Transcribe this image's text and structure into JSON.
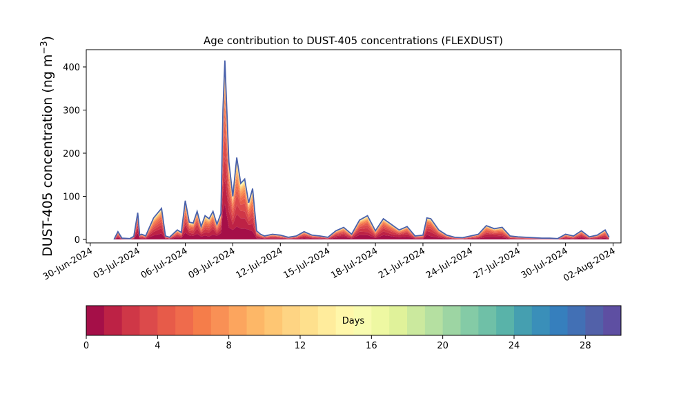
{
  "chart_data": {
    "type": "area",
    "title": "Age contribution to DUST-405 concentrations (FLEXDUST)",
    "ylabel": "DUST-405 concentration (ng m",
    "ylabel_sup": "−3",
    "ylabel_close": ")",
    "ylim": [
      -8,
      440
    ],
    "yticks": [
      0,
      100,
      200,
      300,
      400
    ],
    "xlim": [
      "2024-06-29T18:00",
      "2024-08-02T12:00"
    ],
    "xticks": [
      "2024-06-30",
      "2024-07-03",
      "2024-07-06",
      "2024-07-09",
      "2024-07-12",
      "2024-07-15",
      "2024-07-18",
      "2024-07-21",
      "2024-07-24",
      "2024-07-27",
      "2024-07-30",
      "2024-08-02"
    ],
    "xtick_labels": [
      "30-Jun-2024",
      "03-Jul-2024",
      "06-Jul-2024",
      "09-Jul-2024",
      "12-Jul-2024",
      "15-Jul-2024",
      "18-Jul-2024",
      "21-Jul-2024",
      "24-Jul-2024",
      "27-Jul-2024",
      "30-Jul-2024",
      "02-Aug-2024"
    ],
    "grid": false,
    "total_series": {
      "x": [
        "2024-07-01T12:00",
        "2024-07-01T18:00",
        "2024-07-02T00:00",
        "2024-07-02T12:00",
        "2024-07-02T18:00",
        "2024-07-03T00:00",
        "2024-07-03T03:00",
        "2024-07-03T06:00",
        "2024-07-03T12:00",
        "2024-07-04T00:00",
        "2024-07-04T12:00",
        "2024-07-04T18:00",
        "2024-07-05T00:00",
        "2024-07-05T12:00",
        "2024-07-05T18:00",
        "2024-07-06T00:00",
        "2024-07-06T06:00",
        "2024-07-06T12:00",
        "2024-07-06T18:00",
        "2024-07-07T00:00",
        "2024-07-07T06:00",
        "2024-07-07T12:00",
        "2024-07-07T18:00",
        "2024-07-08T00:00",
        "2024-07-08T06:00",
        "2024-07-08T09:00",
        "2024-07-08T12:00",
        "2024-07-08T18:00",
        "2024-07-09T00:00",
        "2024-07-09T06:00",
        "2024-07-09T12:00",
        "2024-07-09T18:00",
        "2024-07-10T00:00",
        "2024-07-10T06:00",
        "2024-07-10T12:00",
        "2024-07-10T18:00",
        "2024-07-11T00:00",
        "2024-07-11T12:00",
        "2024-07-12T00:00",
        "2024-07-12T12:00",
        "2024-07-13T00:00",
        "2024-07-13T12:00",
        "2024-07-14T00:00",
        "2024-07-14T12:00",
        "2024-07-15T00:00",
        "2024-07-15T12:00",
        "2024-07-16T00:00",
        "2024-07-16T12:00",
        "2024-07-17T00:00",
        "2024-07-17T12:00",
        "2024-07-18T00:00",
        "2024-07-18T12:00",
        "2024-07-19T00:00",
        "2024-07-19T12:00",
        "2024-07-20T00:00",
        "2024-07-20T12:00",
        "2024-07-21T00:00",
        "2024-07-21T06:00",
        "2024-07-21T12:00",
        "2024-07-22T00:00",
        "2024-07-22T12:00",
        "2024-07-23T00:00",
        "2024-07-23T12:00",
        "2024-07-24T00:00",
        "2024-07-24T12:00",
        "2024-07-25T00:00",
        "2024-07-25T12:00",
        "2024-07-26T00:00",
        "2024-07-26T12:00",
        "2024-07-27T00:00",
        "2024-07-27T12:00",
        "2024-07-28T00:00",
        "2024-07-28T12:00",
        "2024-07-29T00:00",
        "2024-07-29T12:00",
        "2024-07-30T00:00",
        "2024-07-30T12:00",
        "2024-07-31T00:00",
        "2024-07-31T12:00",
        "2024-08-01T00:00",
        "2024-08-01T12:00",
        "2024-08-01T18:00"
      ],
      "values": [
        0,
        18,
        3,
        2,
        7,
        62,
        10,
        12,
        8,
        50,
        72,
        8,
        5,
        22,
        16,
        90,
        40,
        38,
        65,
        30,
        55,
        48,
        65,
        35,
        60,
        300,
        415,
        180,
        100,
        190,
        130,
        140,
        85,
        118,
        20,
        12,
        8,
        12,
        10,
        5,
        8,
        18,
        10,
        8,
        5,
        20,
        28,
        12,
        45,
        55,
        20,
        48,
        35,
        22,
        30,
        8,
        10,
        50,
        48,
        22,
        10,
        5,
        4,
        8,
        12,
        32,
        25,
        28,
        8,
        6,
        5,
        4,
        3,
        3,
        2,
        12,
        8,
        20,
        6,
        10,
        22,
        5
      ]
    },
    "colorbar": {
      "label": "Days",
      "min": 0,
      "max": 30,
      "ticks": [
        0,
        4,
        8,
        12,
        16,
        20,
        24,
        28
      ],
      "colors": [
        "#a50f48",
        "#bd2245",
        "#cf3747",
        "#dc4a4b",
        "#e75b49",
        "#ef6b4c",
        "#f57d4a",
        "#f99055",
        "#fca55e",
        "#fdb767",
        "#fec673",
        "#fed483",
        "#fee08d",
        "#ffec9c",
        "#fff7aa",
        "#f8fbaf",
        "#eef8a2",
        "#e0f29a",
        "#cbe99e",
        "#b5e0a1",
        "#9dd5a3",
        "#84cba6",
        "#6fc0a7",
        "#59b3a9",
        "#459fb0",
        "#3a8fb9",
        "#367fbd",
        "#4270b5",
        "#5261a9",
        "#5e4fa2"
      ]
    }
  }
}
